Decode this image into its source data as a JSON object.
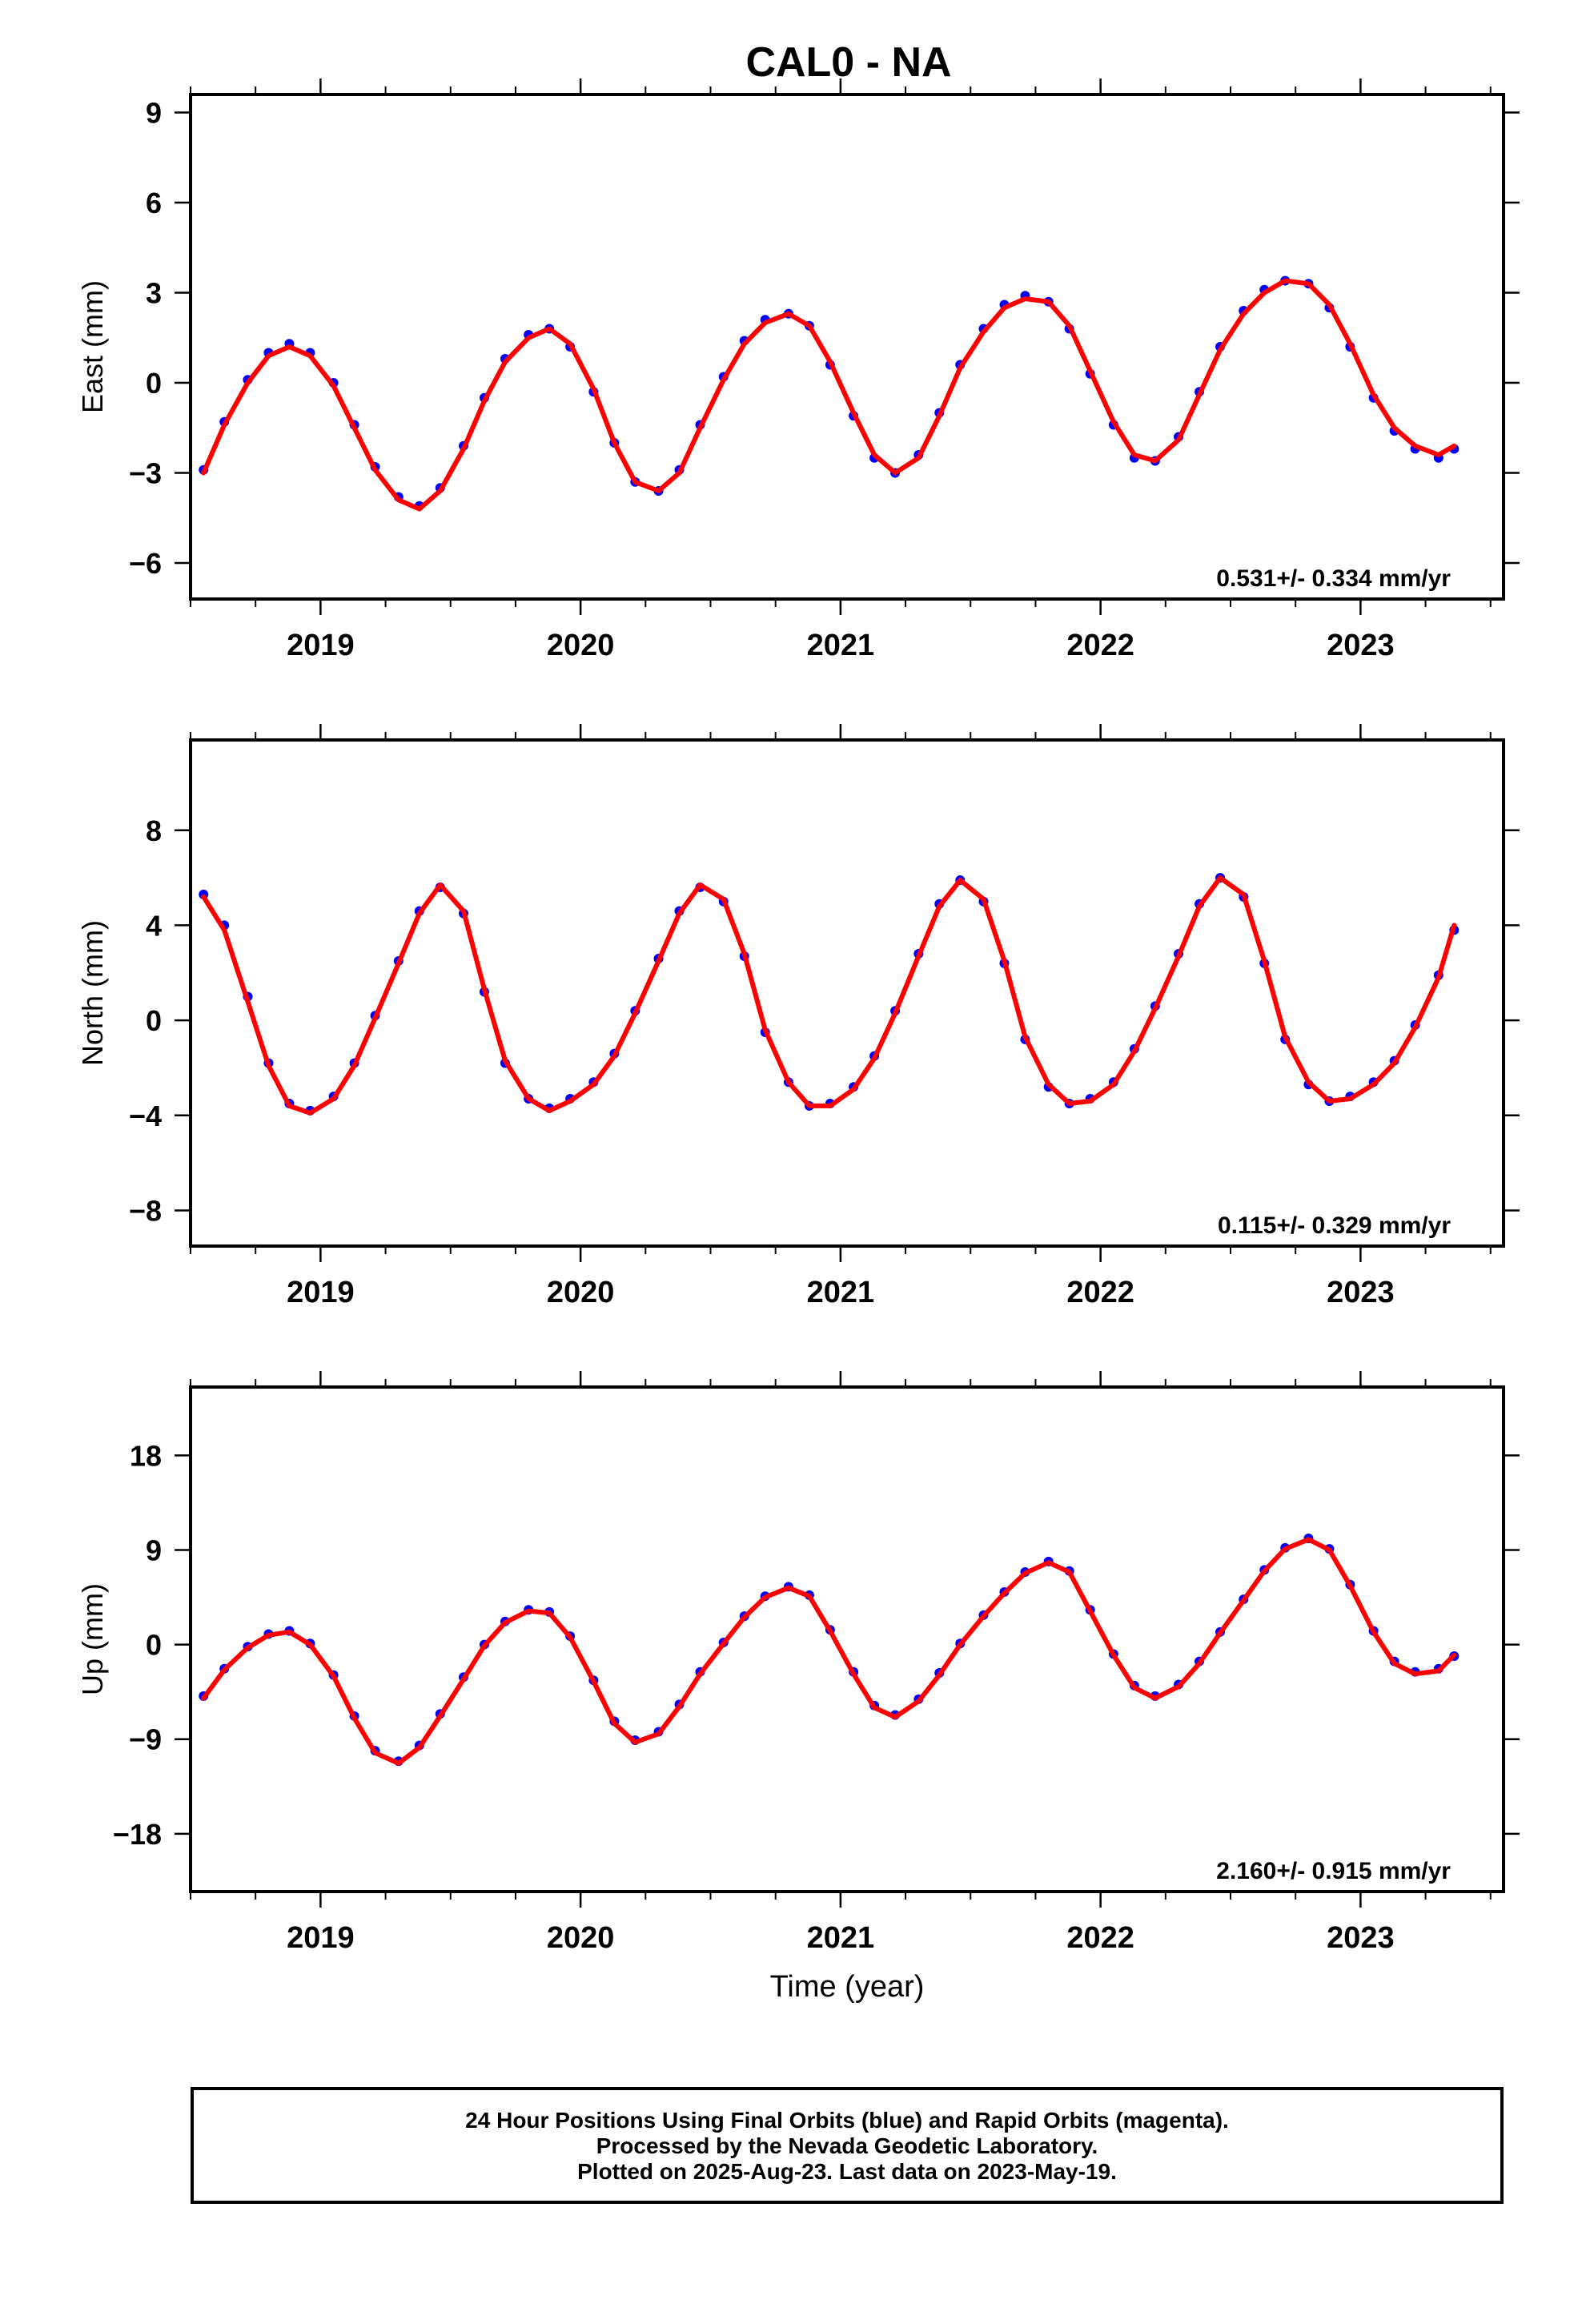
{
  "title": "CAL0 - NA",
  "xlabel": "Time (year)",
  "footer": {
    "line1": "24 Hour Positions Using Final Orbits (blue) and Rapid Orbits (magenta).",
    "line2": "Processed by the Nevada Geodetic Laboratory.",
    "line3": "Plotted on 2025-Aug-23. Last data on 2023-May-19."
  },
  "colors": {
    "data": "#0000ff",
    "fit": "#ff0000",
    "frame": "#000000"
  },
  "chart_data": [
    {
      "type": "scatter",
      "ylabel": "East (mm)",
      "xlim": [
        2018.5,
        2023.55
      ],
      "ylim": [
        -7.2,
        9.6
      ],
      "xticks": [
        2019,
        2020,
        2021,
        2022,
        2023
      ],
      "yticks": [
        -6,
        -3,
        0,
        3,
        6,
        9
      ],
      "annotation": "0.531+/- 0.334 mm/yr",
      "series": [
        {
          "kind": "points",
          "x": [
            2018.55,
            2018.63,
            2018.72,
            2018.8,
            2018.88,
            2018.96,
            2019.05,
            2019.13,
            2019.21,
            2019.3,
            2019.38,
            2019.46,
            2019.55,
            2019.63,
            2019.71,
            2019.8,
            2019.88,
            2019.96,
            2020.05,
            2020.13,
            2020.21,
            2020.3,
            2020.38,
            2020.46,
            2020.55,
            2020.63,
            2020.71,
            2020.8,
            2020.88,
            2020.96,
            2021.05,
            2021.13,
            2021.21,
            2021.3,
            2021.38,
            2021.46,
            2021.55,
            2021.63,
            2021.71,
            2021.8,
            2021.88,
            2021.96,
            2022.05,
            2022.13,
            2022.21,
            2022.3,
            2022.38,
            2022.46,
            2022.55,
            2022.63,
            2022.71,
            2022.8,
            2022.88,
            2022.96,
            2023.05,
            2023.13,
            2023.21,
            2023.3,
            2023.36
          ],
          "y": [
            -2.9,
            -1.3,
            0.1,
            1.0,
            1.3,
            1.0,
            0.0,
            -1.4,
            -2.8,
            -3.8,
            -4.1,
            -3.5,
            -2.1,
            -0.5,
            0.8,
            1.6,
            1.8,
            1.2,
            -0.3,
            -2.0,
            -3.3,
            -3.6,
            -2.9,
            -1.4,
            0.2,
            1.4,
            2.1,
            2.3,
            1.9,
            0.6,
            -1.1,
            -2.5,
            -3.0,
            -2.4,
            -1.0,
            0.6,
            1.8,
            2.6,
            2.9,
            2.7,
            1.8,
            0.3,
            -1.4,
            -2.5,
            -2.6,
            -1.8,
            -0.3,
            1.2,
            2.4,
            3.1,
            3.4,
            3.3,
            2.5,
            1.2,
            -0.5,
            -1.6,
            -2.2,
            -2.5,
            -2.2
          ]
        },
        {
          "kind": "fit",
          "x": [
            2018.55,
            2018.63,
            2018.72,
            2018.8,
            2018.88,
            2018.96,
            2019.05,
            2019.13,
            2019.21,
            2019.3,
            2019.38,
            2019.46,
            2019.55,
            2019.63,
            2019.71,
            2019.8,
            2019.88,
            2019.96,
            2020.05,
            2020.13,
            2020.21,
            2020.3,
            2020.38,
            2020.46,
            2020.55,
            2020.63,
            2020.71,
            2020.8,
            2020.88,
            2020.96,
            2021.05,
            2021.13,
            2021.21,
            2021.3,
            2021.38,
            2021.46,
            2021.55,
            2021.63,
            2021.71,
            2021.8,
            2021.88,
            2021.96,
            2022.05,
            2022.13,
            2022.21,
            2022.3,
            2022.38,
            2022.46,
            2022.55,
            2022.63,
            2022.71,
            2022.8,
            2022.88,
            2022.96,
            2023.05,
            2023.13,
            2023.21,
            2023.3,
            2023.36
          ],
          "y": [
            -3.0,
            -1.4,
            0.0,
            0.9,
            1.2,
            0.9,
            -0.1,
            -1.5,
            -2.9,
            -3.9,
            -4.2,
            -3.6,
            -2.2,
            -0.6,
            0.7,
            1.5,
            1.8,
            1.3,
            -0.2,
            -2.0,
            -3.3,
            -3.6,
            -3.0,
            -1.5,
            0.1,
            1.3,
            2.0,
            2.3,
            1.9,
            0.7,
            -1.0,
            -2.4,
            -3.0,
            -2.5,
            -1.1,
            0.5,
            1.7,
            2.5,
            2.8,
            2.7,
            1.9,
            0.4,
            -1.3,
            -2.4,
            -2.6,
            -1.9,
            -0.4,
            1.1,
            2.3,
            3.0,
            3.4,
            3.3,
            2.6,
            1.3,
            -0.4,
            -1.5,
            -2.1,
            -2.4,
            -2.1
          ]
        }
      ]
    },
    {
      "type": "scatter",
      "ylabel": "North (mm)",
      "xlim": [
        2018.5,
        2023.55
      ],
      "ylim": [
        -9.5,
        11.8
      ],
      "xticks": [
        2019,
        2020,
        2021,
        2022,
        2023
      ],
      "yticks": [
        -8,
        -4,
        0,
        4,
        8
      ],
      "annotation": "0.115+/- 0.329 mm/yr",
      "series": [
        {
          "kind": "points",
          "x": [
            2018.55,
            2018.63,
            2018.72,
            2018.8,
            2018.88,
            2018.96,
            2019.05,
            2019.13,
            2019.21,
            2019.3,
            2019.38,
            2019.46,
            2019.55,
            2019.63,
            2019.71,
            2019.8,
            2019.88,
            2019.96,
            2020.05,
            2020.13,
            2020.21,
            2020.3,
            2020.38,
            2020.46,
            2020.55,
            2020.63,
            2020.71,
            2020.8,
            2020.88,
            2020.96,
            2021.05,
            2021.13,
            2021.21,
            2021.3,
            2021.38,
            2021.46,
            2021.55,
            2021.63,
            2021.71,
            2021.8,
            2021.88,
            2021.96,
            2022.05,
            2022.13,
            2022.21,
            2022.3,
            2022.38,
            2022.46,
            2022.55,
            2022.63,
            2022.71,
            2022.8,
            2022.88,
            2022.96,
            2023.05,
            2023.13,
            2023.21,
            2023.3,
            2023.36
          ],
          "y": [
            5.3,
            4.0,
            1.0,
            -1.8,
            -3.5,
            -3.8,
            -3.2,
            -1.8,
            0.2,
            2.5,
            4.6,
            5.6,
            4.5,
            1.2,
            -1.8,
            -3.3,
            -3.7,
            -3.3,
            -2.6,
            -1.4,
            0.4,
            2.6,
            4.6,
            5.6,
            5.0,
            2.7,
            -0.5,
            -2.6,
            -3.6,
            -3.5,
            -2.8,
            -1.5,
            0.4,
            2.8,
            4.9,
            5.9,
            5.0,
            2.4,
            -0.8,
            -2.8,
            -3.5,
            -3.3,
            -2.6,
            -1.2,
            0.6,
            2.8,
            4.9,
            6.0,
            5.2,
            2.4,
            -0.8,
            -2.7,
            -3.4,
            -3.2,
            -2.6,
            -1.7,
            -0.2,
            1.9,
            3.8
          ]
        },
        {
          "kind": "fit",
          "x": [
            2018.55,
            2018.63,
            2018.72,
            2018.8,
            2018.88,
            2018.96,
            2019.05,
            2019.13,
            2019.21,
            2019.3,
            2019.38,
            2019.46,
            2019.55,
            2019.63,
            2019.71,
            2019.8,
            2019.88,
            2019.96,
            2020.05,
            2020.13,
            2020.21,
            2020.3,
            2020.38,
            2020.46,
            2020.55,
            2020.63,
            2020.71,
            2020.8,
            2020.88,
            2020.96,
            2021.05,
            2021.13,
            2021.21,
            2021.3,
            2021.38,
            2021.46,
            2021.55,
            2021.63,
            2021.71,
            2021.8,
            2021.88,
            2021.96,
            2022.05,
            2022.13,
            2022.21,
            2022.3,
            2022.38,
            2022.46,
            2022.55,
            2022.63,
            2022.71,
            2022.8,
            2022.88,
            2022.96,
            2023.05,
            2023.13,
            2023.21,
            2023.3,
            2023.36
          ],
          "y": [
            5.2,
            3.8,
            0.8,
            -1.9,
            -3.6,
            -3.9,
            -3.3,
            -1.9,
            0.1,
            2.4,
            4.5,
            5.7,
            4.6,
            1.3,
            -1.7,
            -3.3,
            -3.8,
            -3.4,
            -2.7,
            -1.5,
            0.3,
            2.5,
            4.5,
            5.7,
            5.1,
            2.8,
            -0.4,
            -2.6,
            -3.6,
            -3.6,
            -2.9,
            -1.6,
            0.3,
            2.7,
            4.8,
            5.9,
            5.1,
            2.5,
            -0.7,
            -2.7,
            -3.5,
            -3.4,
            -2.7,
            -1.3,
            0.5,
            2.7,
            4.8,
            6.0,
            5.3,
            2.5,
            -0.7,
            -2.6,
            -3.4,
            -3.3,
            -2.7,
            -1.8,
            -0.3,
            1.8,
            4.0
          ]
        }
      ]
    },
    {
      "type": "scatter",
      "ylabel": "Up (mm)",
      "xlim": [
        2018.5,
        2023.55
      ],
      "ylim": [
        -23.5,
        24.5
      ],
      "xticks": [
        2019,
        2020,
        2021,
        2022,
        2023
      ],
      "yticks": [
        -18,
        -9,
        0,
        9,
        18
      ],
      "annotation": "2.160+/- 0.915 mm/yr",
      "series": [
        {
          "kind": "points",
          "x": [
            2018.55,
            2018.63,
            2018.72,
            2018.8,
            2018.88,
            2018.96,
            2019.05,
            2019.13,
            2019.21,
            2019.3,
            2019.38,
            2019.46,
            2019.55,
            2019.63,
            2019.71,
            2019.8,
            2019.88,
            2019.96,
            2020.05,
            2020.13,
            2020.21,
            2020.3,
            2020.38,
            2020.46,
            2020.55,
            2020.63,
            2020.71,
            2020.8,
            2020.88,
            2020.96,
            2021.05,
            2021.13,
            2021.21,
            2021.3,
            2021.38,
            2021.46,
            2021.55,
            2021.63,
            2021.71,
            2021.8,
            2021.88,
            2021.96,
            2022.05,
            2022.13,
            2022.21,
            2022.3,
            2022.38,
            2022.46,
            2022.55,
            2022.63,
            2022.71,
            2022.8,
            2022.88,
            2022.96,
            2023.05,
            2023.13,
            2023.21,
            2023.3,
            2023.36
          ],
          "y": [
            -4.9,
            -2.3,
            -0.2,
            1.0,
            1.3,
            0.1,
            -2.9,
            -6.8,
            -10.1,
            -11.1,
            -9.6,
            -6.6,
            -3.1,
            0.0,
            2.2,
            3.3,
            3.1,
            0.8,
            -3.4,
            -7.3,
            -9.1,
            -8.3,
            -5.7,
            -2.6,
            0.2,
            2.7,
            4.6,
            5.5,
            4.7,
            1.4,
            -2.6,
            -5.8,
            -6.7,
            -5.2,
            -2.7,
            0.1,
            2.8,
            5.0,
            6.9,
            7.9,
            7.0,
            3.3,
            -0.9,
            -3.9,
            -4.9,
            -3.8,
            -1.6,
            1.2,
            4.3,
            7.1,
            9.2,
            10.1,
            9.1,
            5.7,
            1.3,
            -1.6,
            -2.6,
            -2.3,
            -1.1
          ]
        },
        {
          "kind": "fit",
          "x": [
            2018.55,
            2018.63,
            2018.72,
            2018.8,
            2018.88,
            2018.96,
            2019.05,
            2019.13,
            2019.21,
            2019.3,
            2019.38,
            2019.46,
            2019.55,
            2019.63,
            2019.71,
            2019.8,
            2019.88,
            2019.96,
            2020.05,
            2020.13,
            2020.21,
            2020.3,
            2020.38,
            2020.46,
            2020.55,
            2020.63,
            2020.71,
            2020.8,
            2020.88,
            2020.96,
            2021.05,
            2021.13,
            2021.21,
            2021.3,
            2021.38,
            2021.46,
            2021.55,
            2021.63,
            2021.71,
            2021.8,
            2021.88,
            2021.96,
            2022.05,
            2022.13,
            2022.21,
            2022.3,
            2022.38,
            2022.46,
            2022.55,
            2022.63,
            2022.71,
            2022.8,
            2022.88,
            2022.96,
            2023.05,
            2023.13,
            2023.21,
            2023.3,
            2023.36
          ],
          "y": [
            -5.1,
            -2.4,
            -0.3,
            0.9,
            1.2,
            0.0,
            -3.0,
            -7.0,
            -10.3,
            -11.3,
            -9.8,
            -6.8,
            -3.3,
            -0.1,
            2.1,
            3.2,
            3.0,
            0.7,
            -3.5,
            -7.5,
            -9.3,
            -8.5,
            -5.9,
            -2.8,
            0.1,
            2.6,
            4.5,
            5.4,
            4.6,
            1.3,
            -2.8,
            -6.0,
            -6.9,
            -5.4,
            -2.9,
            0.0,
            2.7,
            4.9,
            6.8,
            7.8,
            6.9,
            3.2,
            -1.0,
            -4.1,
            -5.1,
            -4.0,
            -1.8,
            1.1,
            4.2,
            7.0,
            9.1,
            10.0,
            9.0,
            5.6,
            1.2,
            -1.8,
            -2.8,
            -2.5,
            -1.0
          ]
        }
      ]
    }
  ]
}
